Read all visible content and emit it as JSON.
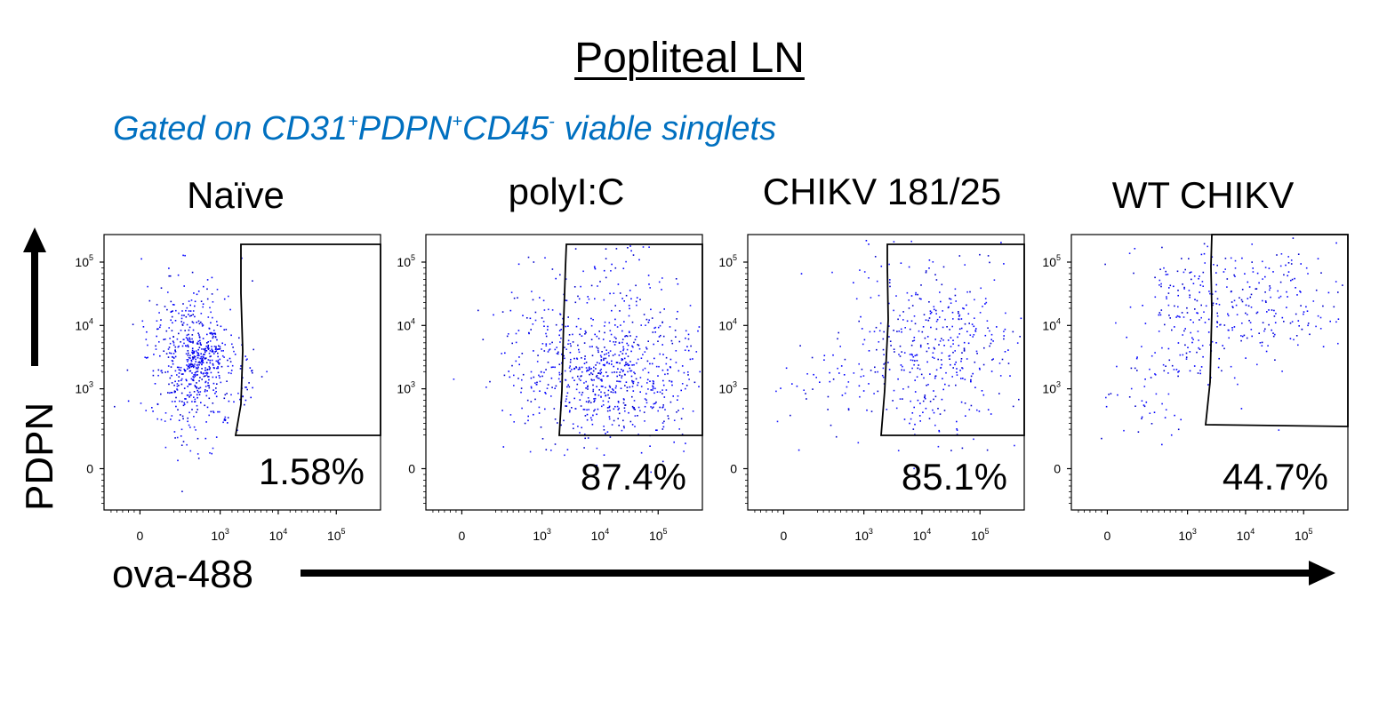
{
  "figure": {
    "title": "Popliteal LN",
    "subtitle_parts": [
      "Gated on CD31",
      "+",
      "PDPN",
      "+",
      "CD45",
      "-",
      " viable singlets"
    ],
    "subtitle_color": "#0070C0",
    "y_axis_label": "PDPN",
    "x_axis_label": "ova-488"
  },
  "chart_data": {
    "type": "scatter",
    "description_axes": {
      "xlabel": "ova-488",
      "ylabel": "PDPN",
      "x_scale": "biexponential",
      "y_scale": "biexponential",
      "x_tick_labels": [
        "0",
        "10^3",
        "10^4",
        "10^5"
      ],
      "y_tick_labels": [
        "0",
        "10^3",
        "10^4",
        "10^5"
      ]
    },
    "dot_colors": [
      "#0000ff",
      "#0000cc",
      "#1a1aff"
    ],
    "panels": [
      {
        "label": "Naïve",
        "gate_percent": "1.58%"
      },
      {
        "label": "polyI:C",
        "gate_percent": "87.4%"
      },
      {
        "label": "CHIKV 181/25",
        "gate_percent": "85.1%"
      },
      {
        "label": "WT CHIKV",
        "gate_percent": "44.7%"
      }
    ]
  }
}
